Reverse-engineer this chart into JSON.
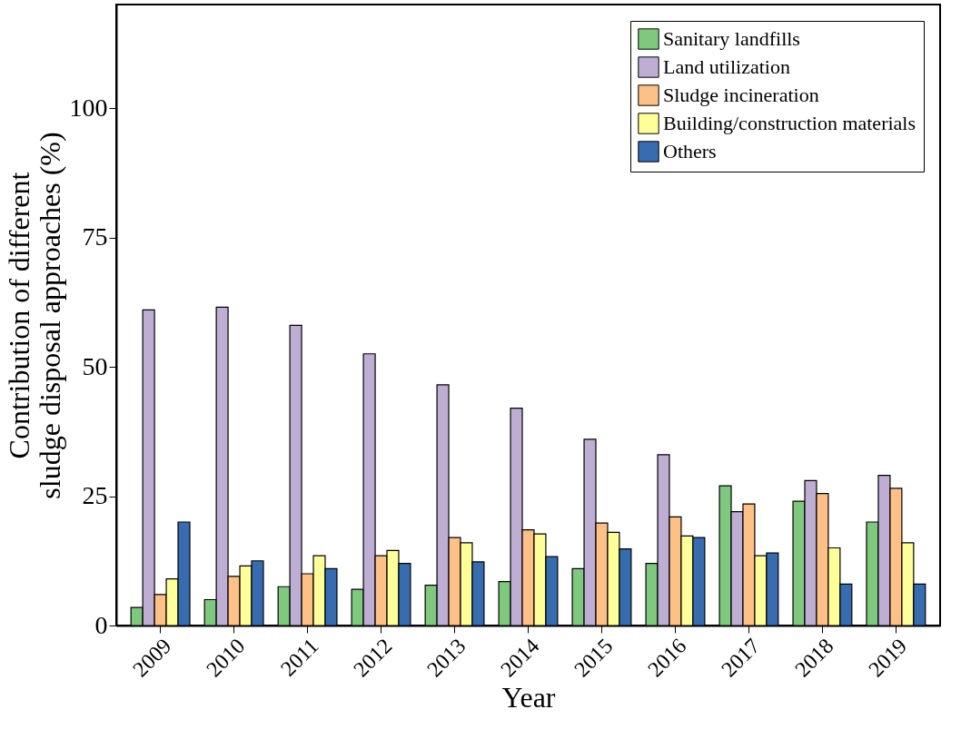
{
  "chart_data": {
    "type": "bar",
    "xlabel": "Year",
    "ylabel": "Contribution of different\nsludge disposal approaches (%)",
    "categories": [
      "2009",
      "2010",
      "2011",
      "2012",
      "2013",
      "2014",
      "2015",
      "2016",
      "2017",
      "2018",
      "2019"
    ],
    "series": [
      {
        "name": "Sanitary landfills",
        "color": "#7fc97f",
        "values": [
          3.5,
          5,
          7.5,
          7,
          7.8,
          8.5,
          11,
          12,
          27,
          24,
          20
        ]
      },
      {
        "name": "Land utilization",
        "color": "#beaed4",
        "values": [
          61,
          61.5,
          58,
          52.5,
          46.5,
          42,
          36,
          33,
          22,
          28,
          29
        ]
      },
      {
        "name": "Sludge incineration",
        "color": "#fdc086",
        "values": [
          6,
          9.5,
          10,
          13.5,
          17,
          18.5,
          19.8,
          21,
          23.5,
          25.5,
          26.5
        ]
      },
      {
        "name": "Building/construction materials",
        "color": "#ffff99",
        "values": [
          9,
          11.5,
          13.5,
          14.5,
          16,
          17.7,
          18,
          17.3,
          13.5,
          15,
          16
        ]
      },
      {
        "name": "Others",
        "color": "#386cb0",
        "values": [
          20,
          12.5,
          11,
          12,
          12.3,
          13.3,
          14.8,
          17,
          14,
          8,
          8
        ]
      }
    ],
    "ylim": [
      0,
      120
    ],
    "yticks": [
      0,
      25,
      50,
      75,
      100
    ],
    "grid": false,
    "legend": "top right"
  }
}
